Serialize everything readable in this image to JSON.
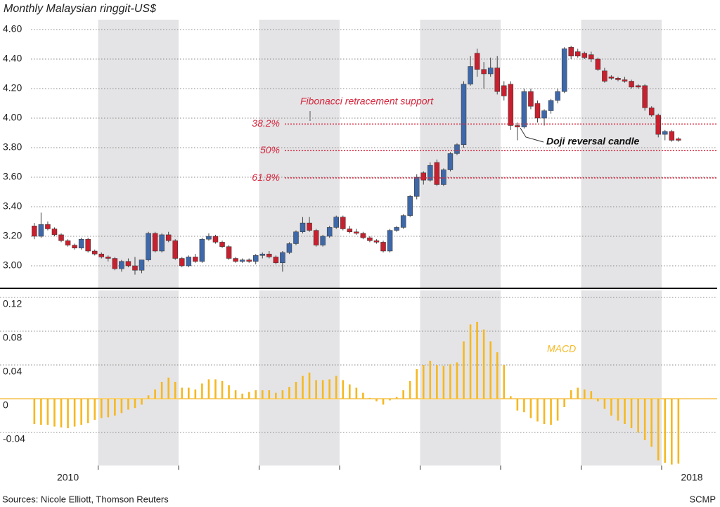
{
  "chart_data": [
    {
      "type": "candlestick",
      "title": "Monthly Malaysian ringgit-US$",
      "categories": [
        null,
        null,
        null,
        null,
        null,
        null,
        null,
        "2010",
        null,
        null,
        null,
        null,
        null,
        null,
        null,
        null,
        null,
        null,
        null,
        null,
        null,
        null,
        null,
        null,
        null,
        null,
        null,
        null,
        null,
        null,
        null,
        null,
        null,
        null,
        null,
        null,
        null,
        null,
        null,
        null,
        null,
        null,
        null,
        null,
        null,
        null,
        null,
        null,
        null,
        null,
        null,
        null,
        null,
        null,
        null,
        null,
        null,
        null,
        null,
        null,
        null,
        null,
        null,
        null,
        null,
        null,
        null,
        null,
        null,
        null,
        null,
        null,
        null,
        null,
        null,
        null,
        null,
        null,
        null,
        null,
        null,
        null,
        null,
        null,
        null,
        null,
        null,
        null,
        null,
        null,
        null,
        null,
        null,
        null,
        null,
        null,
        null,
        null,
        null,
        null,
        "2018"
      ],
      "open": [
        null,
        null,
        3.27,
        3.2,
        3.28,
        3.25,
        3.21,
        3.17,
        3.14,
        3.12,
        3.18,
        3.1,
        3.08,
        3.06,
        3.05,
        2.98,
        3.03,
        3.0,
        2.97,
        3.04,
        3.22,
        3.1,
        3.21,
        3.17,
        3.05,
        3.0,
        3.06,
        3.03,
        3.18,
        3.2,
        3.16,
        3.13,
        3.05,
        3.03,
        3.04,
        3.03,
        3.07,
        3.08,
        3.06,
        3.02,
        3.09,
        3.15,
        3.23,
        3.29,
        3.24,
        3.14,
        3.2,
        3.26,
        3.33,
        3.25,
        3.23,
        3.22,
        3.19,
        3.17,
        3.16,
        3.1,
        3.24,
        3.26,
        3.34,
        3.47,
        3.63,
        3.58,
        3.7,
        3.55,
        3.65,
        3.76,
        3.82,
        4.23,
        4.44,
        4.33,
        4.3,
        4.34,
        4.22,
        4.23,
        3.95,
        3.94,
        4.18,
        4.1,
        4.0,
        4.05,
        4.12,
        4.18,
        4.48,
        4.45,
        4.44,
        4.43,
        4.4,
        4.32,
        4.28,
        4.27,
        4.26,
        4.25,
        4.22,
        4.22,
        4.07,
        4.02,
        3.89,
        3.91,
        3.86,
        null,
        null
      ],
      "high": [
        null,
        null,
        3.29,
        3.36,
        3.3,
        3.26,
        3.22,
        3.18,
        3.15,
        3.19,
        3.19,
        3.11,
        3.09,
        3.07,
        3.06,
        3.04,
        3.05,
        3.06,
        3.04,
        3.23,
        3.23,
        3.22,
        3.23,
        3.18,
        3.06,
        3.07,
        3.08,
        3.19,
        3.22,
        3.21,
        3.17,
        3.14,
        3.06,
        3.05,
        3.05,
        3.08,
        3.09,
        3.1,
        3.07,
        3.1,
        3.16,
        3.24,
        3.33,
        3.33,
        3.25,
        3.21,
        3.27,
        3.34,
        3.34,
        3.27,
        3.25,
        3.23,
        3.2,
        3.18,
        3.17,
        3.25,
        3.27,
        3.35,
        3.48,
        3.62,
        3.64,
        3.7,
        3.72,
        3.66,
        3.77,
        3.83,
        4.25,
        4.42,
        4.47,
        4.38,
        4.41,
        4.42,
        4.25,
        4.25,
        3.97,
        4.2,
        4.2,
        4.12,
        4.06,
        4.13,
        4.2,
        4.48,
        4.49,
        4.47,
        4.45,
        4.45,
        4.41,
        4.34,
        4.29,
        4.28,
        4.28,
        4.26,
        4.23,
        4.23,
        4.08,
        4.03,
        3.92,
        3.92,
        3.87,
        null,
        null
      ],
      "low": [
        null,
        null,
        3.18,
        3.19,
        3.24,
        3.2,
        3.16,
        3.13,
        3.11,
        3.11,
        3.09,
        3.07,
        3.05,
        3.03,
        2.97,
        2.96,
        2.99,
        2.94,
        2.95,
        3.03,
        3.09,
        3.09,
        3.16,
        3.04,
        2.99,
        2.99,
        3.02,
        3.02,
        3.17,
        3.15,
        3.12,
        3.04,
        3.02,
        3.02,
        3.02,
        3.01,
        3.05,
        3.05,
        3.01,
        2.96,
        3.08,
        3.14,
        3.22,
        3.23,
        3.13,
        3.13,
        3.19,
        3.25,
        3.24,
        3.22,
        3.21,
        3.18,
        3.16,
        3.15,
        3.09,
        3.09,
        3.23,
        3.25,
        3.33,
        3.45,
        3.55,
        3.57,
        3.54,
        3.54,
        3.64,
        3.75,
        3.8,
        4.22,
        4.28,
        4.2,
        4.28,
        4.16,
        4.12,
        3.92,
        3.85,
        3.93,
        4.06,
        3.97,
        3.95,
        4.03,
        4.1,
        4.17,
        4.4,
        4.41,
        4.4,
        4.38,
        4.32,
        4.24,
        4.26,
        4.25,
        4.24,
        4.2,
        4.2,
        4.05,
        4.01,
        3.87,
        3.85,
        3.84,
        3.84,
        null,
        null
      ],
      "close": [
        null,
        null,
        3.2,
        3.28,
        3.25,
        3.21,
        3.17,
        3.14,
        3.12,
        3.18,
        3.1,
        3.08,
        3.06,
        3.05,
        2.98,
        3.03,
        3.0,
        2.97,
        3.04,
        3.22,
        3.1,
        3.21,
        3.17,
        3.05,
        3.0,
        3.06,
        3.03,
        3.18,
        3.2,
        3.16,
        3.13,
        3.05,
        3.03,
        3.04,
        3.03,
        3.07,
        3.08,
        3.06,
        3.02,
        3.09,
        3.15,
        3.23,
        3.29,
        3.24,
        3.14,
        3.2,
        3.26,
        3.33,
        3.25,
        3.23,
        3.22,
        3.19,
        3.17,
        3.16,
        3.1,
        3.24,
        3.26,
        3.34,
        3.47,
        3.6,
        3.58,
        3.68,
        3.55,
        3.65,
        3.76,
        3.82,
        4.23,
        4.35,
        4.33,
        4.3,
        4.34,
        4.18,
        4.15,
        3.95,
        3.94,
        4.18,
        4.08,
        4.0,
        4.05,
        4.12,
        4.18,
        4.47,
        4.42,
        4.42,
        4.41,
        4.4,
        4.33,
        4.25,
        4.27,
        4.26,
        4.25,
        4.21,
        4.21,
        4.07,
        4.02,
        3.89,
        3.91,
        3.85,
        3.85,
        null,
        null
      ],
      "up_color": "#3e68a8",
      "down_color": "#c8202e",
      "ylim": [
        2.85,
        4.65
      ],
      "yticks": [
        {
          "value": 4.6,
          "label": "4.60"
        },
        {
          "value": 4.4,
          "label": "4.40"
        },
        {
          "value": 4.2,
          "label": "4.20"
        },
        {
          "value": 4.0,
          "label": "4.00"
        },
        {
          "value": 3.8,
          "label": "3.80"
        },
        {
          "value": 3.6,
          "label": "3.60"
        },
        {
          "value": 3.4,
          "label": "3.40"
        },
        {
          "value": 3.2,
          "label": "3.20"
        },
        {
          "value": 3.0,
          "label": "3.00"
        }
      ],
      "grid": true,
      "levels_title": "Fibonacci retracement support",
      "levels": [
        {
          "value": 3.96,
          "label": "38.2%"
        },
        {
          "value": 3.78,
          "label": "50%"
        },
        {
          "value": 3.595,
          "label": "61.8%"
        }
      ],
      "levels_color": "#d7263d",
      "annotation": "Doji reversal candle",
      "source": "Sources: Nicole Elliott, Thomson Reuters",
      "credit": "SCMP"
    },
    {
      "type": "bar",
      "label": "MACD",
      "color": "#f5b820",
      "values": [
        null,
        null,
        -0.03,
        -0.031,
        -0.031,
        -0.033,
        -0.034,
        -0.035,
        -0.033,
        -0.031,
        -0.029,
        -0.025,
        -0.023,
        -0.022,
        -0.02,
        -0.017,
        -0.013,
        -0.011,
        -0.007,
        0.004,
        0.011,
        0.02,
        0.025,
        0.02,
        0.013,
        0.013,
        0.011,
        0.018,
        0.023,
        0.023,
        0.021,
        0.016,
        0.01,
        0.006,
        0.008,
        0.01,
        0.01,
        0.01,
        0.007,
        0.01,
        0.014,
        0.02,
        0.027,
        0.031,
        0.022,
        0.022,
        0.023,
        0.027,
        0.022,
        0.017,
        0.013,
        0.007,
        0.001,
        -0.003,
        -0.007,
        -0.002,
        0.002,
        0.01,
        0.021,
        0.035,
        0.04,
        0.045,
        0.04,
        0.039,
        0.041,
        0.043,
        0.068,
        0.088,
        0.091,
        0.082,
        0.068,
        0.055,
        0.04,
        0.003,
        -0.014,
        -0.016,
        -0.023,
        -0.027,
        -0.03,
        -0.031,
        -0.026,
        -0.01,
        0.01,
        0.013,
        0.011,
        0.009,
        -0.003,
        -0.012,
        -0.02,
        -0.026,
        -0.03,
        -0.035,
        -0.04,
        -0.049,
        -0.057,
        -0.073,
        -0.076,
        -0.078,
        -0.077,
        null,
        null
      ],
      "ylim": [
        -0.08,
        0.125
      ],
      "yticks": [
        0.12,
        0.08,
        0.04,
        0,
        -0.04
      ],
      "grid": true
    }
  ]
}
